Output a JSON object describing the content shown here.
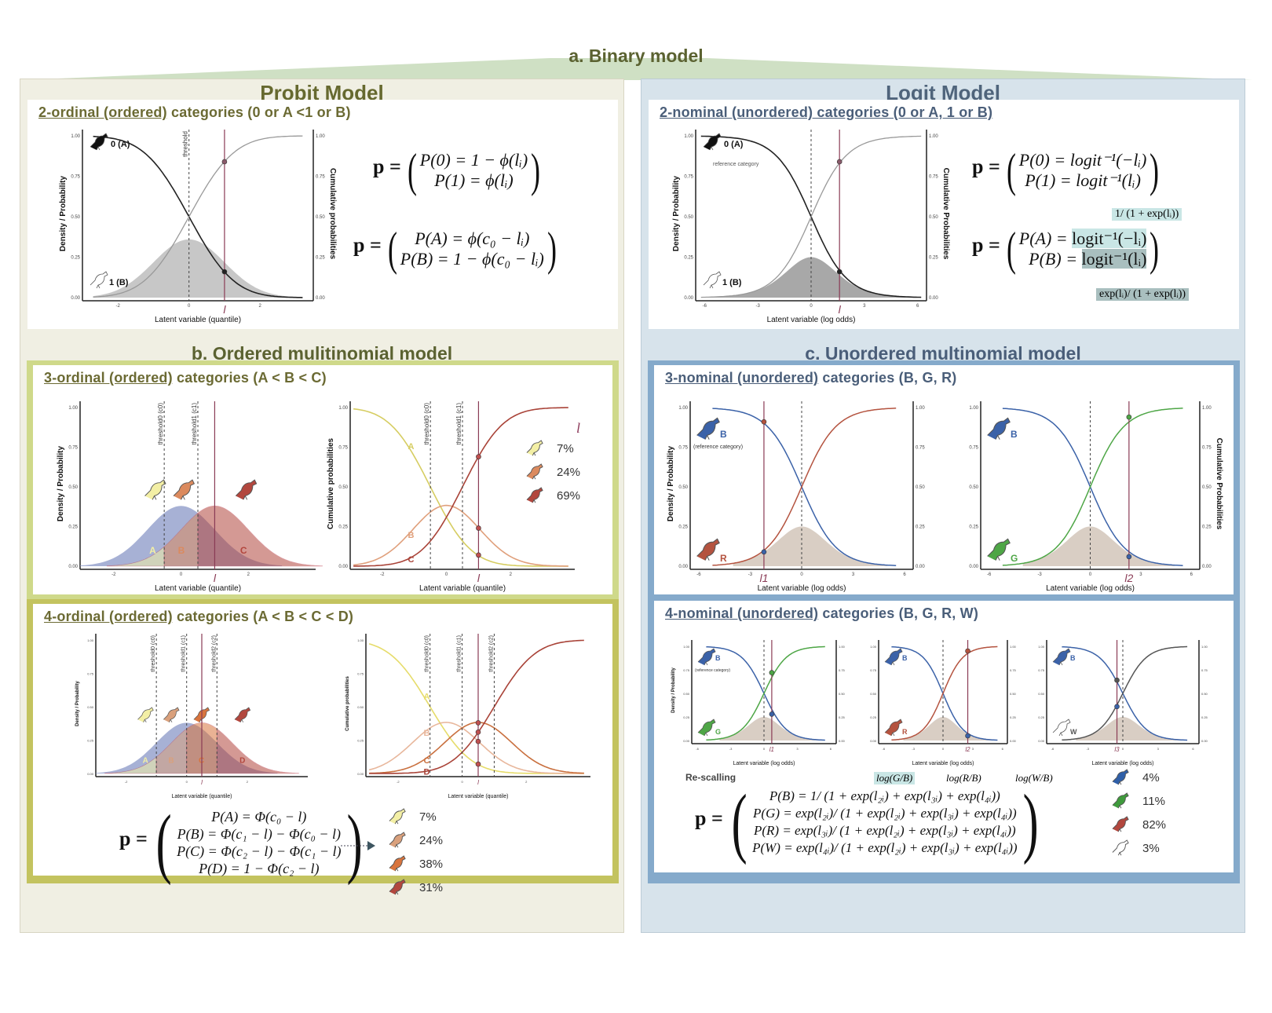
{
  "header": {
    "title": "a.  Binary model"
  },
  "probit": {
    "title": "Probit Model",
    "binary_card": {
      "title_underlined": "2-ordinal (ordered)",
      "title_rest": " categories (0 or A <1 or B)",
      "eq1": {
        "lhs": "p =",
        "rows": [
          "P(0) = 1 − ϕ(lᵢ)",
          "P(1) = ϕ(lᵢ)"
        ]
      },
      "eq2": {
        "lhs": "p =",
        "rows": [
          "P(A) = ϕ(c₀ − lᵢ)",
          "P(B) = 1 − ϕ(c₀ − lᵢ)"
        ]
      }
    },
    "ordered_section_title": "b. Ordered mulitinomial model",
    "three_card": {
      "title_underlined": "3-ordinal (ordered)",
      "title_rest": " categories (A < B < C)",
      "legend_symbol": "l",
      "legend": [
        {
          "label": "7%",
          "color": "#f3efa5"
        },
        {
          "label": "24%",
          "color": "#db8a5e"
        },
        {
          "label": "69%",
          "color": "#b2473e"
        }
      ]
    },
    "four_card": {
      "title_underlined": "4-ordinal (ordered)",
      "title_rest": " categories  (A < B < C < D)",
      "eq": {
        "lhs": "p =",
        "rows": [
          "P(A) = Φ(c₀ − l)",
          "P(B) = Φ(c₁ − l) − Φ(c₀ − l)",
          "P(C) = Φ(c₂ − l) − Φ(c₁ − l)",
          "P(D) = 1 − Φ(c₂ − l)"
        ]
      },
      "legend": [
        {
          "label": "7%",
          "color": "#f3efa5"
        },
        {
          "label": "24%",
          "color": "#d9a07c"
        },
        {
          "label": "38%",
          "color": "#d8743d"
        },
        {
          "label": "31%",
          "color": "#b2473e"
        }
      ]
    }
  },
  "logit": {
    "title": "Logit Model",
    "binary_card": {
      "title_underlined": "2-nominal (unordered) categories (0 or A, 1 or B)",
      "eq1": {
        "lhs": "p =",
        "rows": [
          "P(0) = logit⁻¹(−lᵢ)",
          "P(1) = logit⁻¹(lᵢ)"
        ]
      },
      "eq2": {
        "lhs": "p =",
        "rows_prefix": [
          "P(A) = ",
          "P(B) = "
        ],
        "rows_hl": [
          "logit⁻¹(−lᵢ)",
          "logit⁻¹(lᵢ)"
        ]
      },
      "note_top": "1/ (1 + exp(lᵢ))",
      "note_bottom": "exp(lᵢ)/ (1 + exp(lᵢ))"
    },
    "unordered_section_title": "c. Unordered multinomial  model",
    "three_card": {
      "title_underlined": "3-nominal (unordered)",
      "title_rest": " categories (B, G, R)"
    },
    "four_card": {
      "title_underlined": "4-nominal (unordered)",
      "title_rest": " categories (B, G, R, W)",
      "rescaling_label": "Re-scalling",
      "log_labels": [
        "log(G/B)",
        "log(R/B)",
        "log(W/B)"
      ],
      "eq": {
        "lhs": "p =",
        "rows": [
          "P(B) = 1/ (1 + exp(l₂ᵢ) + exp(l₃ᵢ) + exp(l₄ᵢ))",
          "P(G) = exp(l₂ᵢ)/ (1 + exp(l₂ᵢ) + exp(l₃ᵢ) + exp(l₄ᵢ))",
          "P(R) = exp(l₃ᵢ)/ (1 + exp(l₂ᵢ) + exp(l₃ᵢ) + exp(l₄ᵢ))",
          "P(W) = exp(l₄ᵢ)/ (1 + exp(l₂ᵢ) + exp(l₃ᵢ) + exp(l₄ᵢ))"
        ]
      },
      "legend": [
        {
          "label": "4%",
          "color": "#2f5fa8"
        },
        {
          "label": "11%",
          "color": "#3f9a3c"
        },
        {
          "label": "82%",
          "color": "#b2473e"
        },
        {
          "label": "3%",
          "color": "#ffffff"
        }
      ]
    }
  },
  "chart_data": [
    {
      "id": "probit-binary",
      "type": "line",
      "xlabel": "Latent variable (quantile)",
      "ylabel": "Density / Probability",
      "y2label": "Cumulative probabilities",
      "xlim": [
        -3,
        3.5
      ],
      "ylim": [
        0,
        1
      ],
      "xticks": [
        -2,
        0,
        2
      ],
      "yticks": [
        "0.00",
        "0.25",
        "0.50",
        "0.75",
        "1.00"
      ],
      "link": "probit",
      "threshold": 0,
      "threshold_label": "threshold",
      "l": 1,
      "l_label": "l",
      "series": [
        {
          "name": "0 (A)",
          "color": "#222222",
          "kind": "decreasing"
        },
        {
          "name": "1 (B)",
          "color": "#999999",
          "kind": "increasing"
        }
      ],
      "density": {
        "color": "#bdbdbd",
        "peak": 0.36
      },
      "points": [
        0.84,
        0.16
      ]
    },
    {
      "id": "logit-binary",
      "type": "line",
      "xlabel": "Latent variable (log odds)",
      "ylabel": "Density / Probability",
      "y2label": "Cumulative Probabilities",
      "xlim": [
        -6.5,
        6.5
      ],
      "ylim": [
        0,
        1
      ],
      "xticks": [
        -6,
        -3,
        0,
        3,
        6
      ],
      "yticks": [
        "0.00",
        "0.25",
        "0.50",
        "0.75",
        "1.00"
      ],
      "link": "logit",
      "threshold": 0,
      "l": 1.6,
      "l_label": "l",
      "series": [
        {
          "name": "0 (A)",
          "note": "reference category",
          "color": "#222222",
          "kind": "decreasing"
        },
        {
          "name": "1 (B)",
          "color": "#999999",
          "kind": "increasing"
        }
      ],
      "density": {
        "color": "#999999",
        "peak": 0.25
      },
      "points": [
        0.84,
        0.16
      ]
    },
    {
      "id": "ordered3-density",
      "type": "area",
      "xlabel": "Latent variable (quantile)",
      "ylabel": "Density / Probability",
      "xlim": [
        -3,
        4
      ],
      "ylim": [
        0,
        1
      ],
      "xticks": [
        -2,
        0,
        2
      ],
      "yticks": [
        "0.00",
        "0.25",
        "0.50",
        "0.75",
        "1.00"
      ],
      "thresholds": [
        -0.5,
        0.5
      ],
      "threshold_labels": [
        "threshold0 (c0)",
        "threshold1 (c1)"
      ],
      "l": 1,
      "l_label": "l",
      "categories": [
        "A",
        "B",
        "C"
      ],
      "colors": [
        "#f3efa5",
        "#db8a5e",
        "#b2473e"
      ]
    },
    {
      "id": "ordered3-cumulative",
      "type": "line",
      "xlabel": "Latent variable (quantile)",
      "ylabel": "Cumulative probabilities",
      "xlim": [
        -3,
        4
      ],
      "ylim": [
        0,
        1
      ],
      "xticks": [
        -2,
        0,
        2
      ],
      "yticks": [
        "0.00",
        "0.25",
        "0.50",
        "0.75",
        "1.00"
      ],
      "thresholds": [
        -0.5,
        0.5
      ],
      "threshold_labels": [
        "threshold0 (c0)",
        "threshold1 (c1)"
      ],
      "l": 1,
      "l_label": "l",
      "series": [
        {
          "name": "A",
          "color": "#d6cd62"
        },
        {
          "name": "B",
          "color": "#e0a07c"
        },
        {
          "name": "C",
          "color": "#a94338"
        }
      ],
      "points": [
        0.69,
        0.24,
        0.07
      ]
    },
    {
      "id": "ordered4-density",
      "type": "area",
      "xlabel": "Latent variable (quantile)",
      "ylabel": "Density / Probability",
      "xlim": [
        -3,
        4
      ],
      "ylim": [
        0,
        1
      ],
      "xticks": [
        -2,
        0,
        2
      ],
      "yticks": [
        "0.00",
        "0.25",
        "0.50",
        "0.75",
        "1.00"
      ],
      "thresholds": [
        -1,
        0,
        1
      ],
      "threshold_labels": [
        "threshold0 (c0)",
        "threshold1 (c1)",
        "threshold2 (c2)"
      ],
      "l": 0.5,
      "l_label": "l",
      "categories": [
        "A",
        "B",
        "C",
        "D"
      ],
      "colors": [
        "#f3efa5",
        "#d9a07c",
        "#d8743d",
        "#b2473e"
      ]
    },
    {
      "id": "ordered4-cumulative",
      "type": "line",
      "xlabel": "Latent variable (quantile)",
      "ylabel": "Cumulative probabilities",
      "xlim": [
        -3,
        4
      ],
      "ylim": [
        0,
        1
      ],
      "xticks": [
        -2,
        0,
        2
      ],
      "yticks": [
        "0.00",
        "0.25",
        "0.50",
        "0.75",
        "1.00"
      ],
      "thresholds": [
        -1,
        0,
        1
      ],
      "threshold_labels": [
        "threshold0 (c0)",
        "threshold1 (c1)",
        "threshold2 (c2)"
      ],
      "l": 0.5,
      "l_label": "l",
      "series": [
        {
          "name": "A",
          "color": "#e6dc6a"
        },
        {
          "name": "B",
          "color": "#e8b79c"
        },
        {
          "name": "C",
          "color": "#c9703f"
        },
        {
          "name": "D",
          "color": "#a94338"
        }
      ],
      "points": [
        0.38,
        0.31,
        0.24,
        0.07
      ]
    },
    {
      "id": "nominal3-BR",
      "type": "line",
      "xlabel": "Latent variable (log odds)",
      "ylabel": "Density / Probability",
      "xlim": [
        -6.5,
        6.5
      ],
      "ylim": [
        0,
        1
      ],
      "xticks": [
        -6,
        -3,
        0,
        3,
        6
      ],
      "yticks": [
        "0.00",
        "0.25",
        "0.50",
        "0.75",
        "1.00"
      ],
      "l": -2.2,
      "l_label": "l1",
      "series": [
        {
          "name": "B",
          "note": "(reference category)",
          "color": "#3b62a8"
        },
        {
          "name": "R",
          "color": "#b4533f"
        }
      ],
      "points": [
        0.91,
        0.09
      ]
    },
    {
      "id": "nominal3-BG",
      "type": "line",
      "xlabel": "Latent variable (log odds)",
      "y2label": "Cumulative Probabilities",
      "xlim": [
        -6.5,
        6.5
      ],
      "ylim": [
        0,
        1
      ],
      "xticks": [
        -6,
        -3,
        0,
        3,
        6
      ],
      "yticks": [
        "0.00",
        "0.25",
        "0.50",
        "0.75",
        "1.00"
      ],
      "l": 2.3,
      "l_label": "l2",
      "series": [
        {
          "name": "B",
          "color": "#3b62a8"
        },
        {
          "name": "G",
          "color": "#4ea646"
        }
      ],
      "points": [
        0.94,
        0.06
      ]
    },
    {
      "id": "nominal4-BG",
      "type": "line",
      "xlabel": "Latent variable (log odds)",
      "ylabel": "Density / Probability",
      "xlim": [
        -6.5,
        6.5
      ],
      "ylim": [
        0,
        1
      ],
      "l": 0.7,
      "l_label": "l1",
      "series": [
        {
          "name": "B",
          "note": "(reference category)",
          "color": "#3b62a8"
        },
        {
          "name": "G",
          "color": "#4ea646"
        }
      ],
      "points": [
        0.72,
        0.28
      ]
    },
    {
      "id": "nominal4-BR",
      "type": "line",
      "xlabel": "Latent variable (log odds)",
      "xlim": [
        -6.5,
        6.5
      ],
      "ylim": [
        0,
        1
      ],
      "l": 2.5,
      "l_label": "l2",
      "series": [
        {
          "name": "B",
          "color": "#3b62a8"
        },
        {
          "name": "R",
          "color": "#b4533f"
        }
      ],
      "points": [
        0.95,
        0.05
      ]
    },
    {
      "id": "nominal4-BW",
      "type": "line",
      "xlabel": "Latent variable (log odds)",
      "y2label": "Cumulative Probabilities",
      "xlim": [
        -6.5,
        6.5
      ],
      "ylim": [
        0,
        1
      ],
      "l": -0.5,
      "l_label": "l3",
      "series": [
        {
          "name": "B",
          "color": "#3b62a8"
        },
        {
          "name": "W",
          "color": "#555555"
        }
      ],
      "points": [
        0.64,
        0.36
      ]
    }
  ]
}
